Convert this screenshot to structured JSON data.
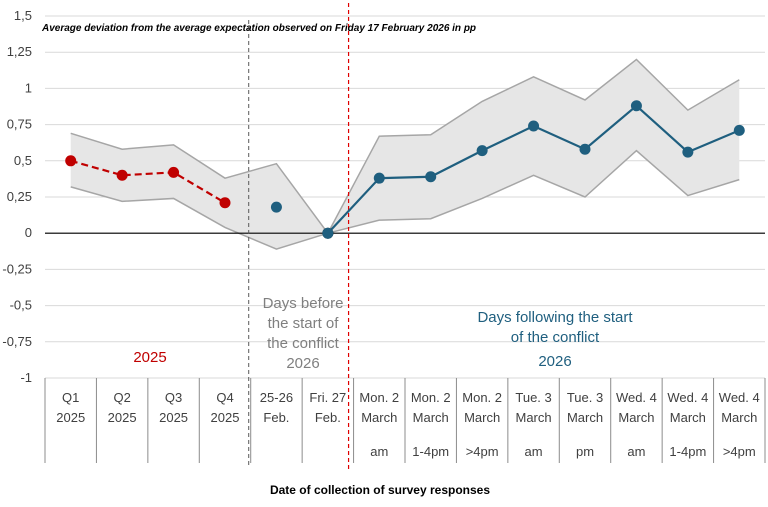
{
  "chart_data": {
    "type": "line",
    "title": "Average deviation from the average expectation observed on Friday 17 February 2026 in pp",
    "xlabel": "Date of collection of survey responses",
    "ylabel": "",
    "ylim": [
      -1,
      1.5
    ],
    "yticks": [
      "1,5",
      "1,25",
      "1",
      "0,75",
      "0,5",
      "0,25",
      "0",
      "-0,25",
      "-0,5",
      "-0,75",
      "-1"
    ],
    "grid": true,
    "categories": [
      {
        "line1": "Q1",
        "line2": "2025",
        "line3": ""
      },
      {
        "line1": "Q2",
        "line2": "2025",
        "line3": ""
      },
      {
        "line1": "Q3",
        "line2": "2025",
        "line3": ""
      },
      {
        "line1": "Q4",
        "line2": "2025",
        "line3": ""
      },
      {
        "line1": "25-26",
        "line2": "Feb.",
        "line3": ""
      },
      {
        "line1": "Fri. 27",
        "line2": "Feb.",
        "line3": ""
      },
      {
        "line1": "Mon. 2",
        "line2": "March",
        "line3": "am"
      },
      {
        "line1": "Mon. 2",
        "line2": "March",
        "line3": "1-4pm"
      },
      {
        "line1": "Mon. 2",
        "line2": "March",
        "line3": ">4pm"
      },
      {
        "line1": "Tue. 3",
        "line2": "March",
        "line3": "am"
      },
      {
        "line1": "Tue. 3",
        "line2": "March",
        "line3": "pm"
      },
      {
        "line1": "Wed. 4",
        "line2": "March",
        "line3": "am"
      },
      {
        "line1": "Wed. 4",
        "line2": "March",
        "line3": "1-4pm"
      },
      {
        "line1": "Wed. 4",
        "line2": "March",
        "line3": ">4pm"
      }
    ],
    "series": [
      {
        "values": [
          0.5,
          0.4,
          0.42,
          0.21,
          null,
          null,
          null,
          null,
          null,
          null,
          null,
          null,
          null,
          null
        ],
        "color": "#c00000",
        "dashed": true
      },
      {
        "values": [
          null,
          null,
          null,
          null,
          0.18,
          null,
          null,
          null,
          null,
          null,
          null,
          null,
          null,
          null
        ],
        "color": "#1f5f7f",
        "dashed": false
      },
      {
        "values": [
          null,
          null,
          null,
          null,
          null,
          0.0,
          null,
          null,
          null,
          null,
          null,
          null,
          null,
          null
        ],
        "color": "#000000",
        "dashed": false
      },
      {
        "values": [
          null,
          null,
          null,
          null,
          null,
          0.0,
          0.38,
          0.39,
          0.57,
          0.74,
          0.58,
          0.88,
          0.56,
          0.71
        ],
        "color": "#1f5f7f",
        "dashed": false
      }
    ],
    "band_upper": [
      0.69,
      0.58,
      0.61,
      0.38,
      0.48,
      0.0,
      0.67,
      0.68,
      0.91,
      1.08,
      0.92,
      1.2,
      0.85,
      1.06
    ],
    "band_lower": [
      0.32,
      0.22,
      0.24,
      0.04,
      -0.11,
      0.0,
      0.09,
      0.1,
      0.24,
      0.4,
      0.25,
      0.57,
      0.26,
      0.37
    ],
    "band_fill": "#e6e6e6",
    "band_stroke": "#a6a6a6",
    "annotations": [
      {
        "lines": [
          "2025"
        ],
        "color": "#c00000"
      },
      {
        "lines": [
          "Days before",
          "the start of",
          "the conflict",
          "2026"
        ],
        "color": "#7f7f7f"
      },
      {
        "lines": [
          "Days following the start",
          "of the conflict",
          "2026"
        ],
        "color": "#1f5f7f"
      }
    ]
  }
}
